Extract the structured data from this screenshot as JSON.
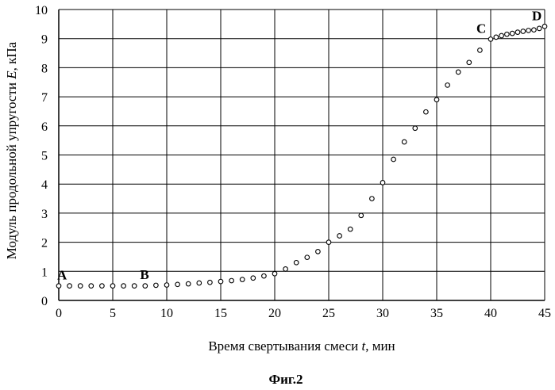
{
  "figure_caption": "Фиг.2",
  "chart_data": {
    "type": "scatter",
    "title": "",
    "xlabel": "Время свертывания смеси t, мин",
    "ylabel": "Модуль продольной упругости E, кПа",
    "xlabel_parts": {
      "before": "Время свертывания смеси ",
      "var": "t",
      "after": ", мин"
    },
    "ylabel_parts": {
      "before": "Модуль продольной упругости ",
      "var": "E",
      "after": ", кПа"
    },
    "xlim": [
      0,
      45
    ],
    "ylim": [
      0,
      10
    ],
    "x_ticks": [
      0,
      5,
      10,
      15,
      20,
      25,
      30,
      35,
      40,
      45
    ],
    "y_ticks": [
      0,
      1,
      2,
      3,
      4,
      5,
      6,
      7,
      8,
      9,
      10
    ],
    "grid": true,
    "marker": "hollow-circle",
    "series": [
      {
        "x": [
          0,
          1,
          2,
          3,
          4,
          5,
          6,
          7,
          8,
          9,
          10,
          11,
          12,
          13,
          14,
          15,
          16,
          17,
          18,
          19,
          20,
          21,
          22,
          23,
          24,
          25,
          26,
          27,
          28,
          29,
          30,
          31,
          32,
          33,
          34,
          35,
          36,
          37,
          38,
          39,
          40,
          40.5,
          41,
          41.5,
          42,
          42.5,
          43,
          43.5,
          44,
          44.5,
          45
        ],
        "y": [
          0.5,
          0.5,
          0.5,
          0.5,
          0.5,
          0.5,
          0.5,
          0.5,
          0.5,
          0.52,
          0.53,
          0.55,
          0.57,
          0.6,
          0.62,
          0.65,
          0.68,
          0.72,
          0.77,
          0.84,
          0.92,
          1.08,
          1.3,
          1.48,
          1.68,
          2.0,
          2.22,
          2.45,
          2.92,
          3.5,
          4.05,
          4.85,
          5.45,
          5.92,
          6.48,
          6.9,
          7.4,
          7.85,
          8.18,
          8.6,
          8.98,
          9.05,
          9.1,
          9.15,
          9.18,
          9.22,
          9.25,
          9.28,
          9.3,
          9.35,
          9.42
        ]
      }
    ],
    "annotations": [
      {
        "label": "A",
        "x": 0,
        "y": 0.5
      },
      {
        "label": "B",
        "x": 9,
        "y": 0.52
      },
      {
        "label": "C",
        "x": 40,
        "y": 8.98
      },
      {
        "label": "D",
        "x": 45,
        "y": 9.42
      }
    ]
  }
}
